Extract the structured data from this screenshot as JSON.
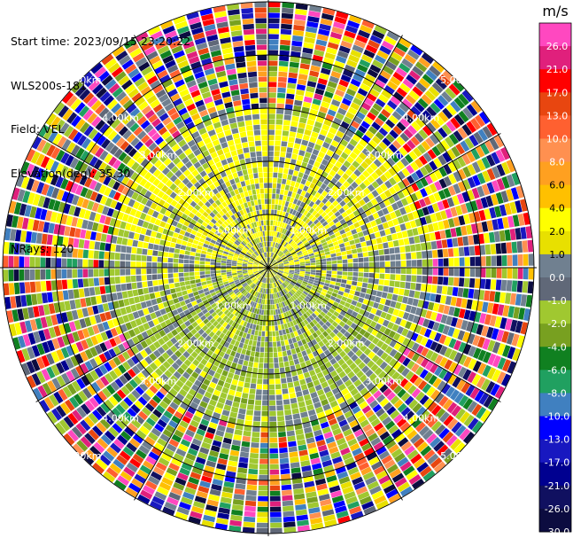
{
  "header": {
    "start_time": "Start time: 2023/09/15 23:20:22",
    "instrument": "WLS200s-181",
    "field": "Field: VEL",
    "elevation": "Elevation(deg): 35.30",
    "nrays": "NRays: 120"
  },
  "chart_data": {
    "type": "ppi",
    "field": "VEL",
    "units": "m/s",
    "nrays": 120,
    "elevation_deg": 35.3,
    "range_rings_km": [
      1,
      2,
      3,
      4,
      5
    ],
    "range_labels": [
      "1.00km",
      "2.00km",
      "3.00km",
      "4.00km",
      "5.00km"
    ],
    "azimuth_spokes_deg": [
      0,
      30,
      60,
      90,
      120,
      150,
      180,
      210,
      240,
      270,
      300,
      330
    ],
    "max_range_km": 5.05,
    "colorbar": {
      "label": "m/s",
      "ticks": [
        "26.0",
        "21.0",
        "17.0",
        "13.0",
        "10.0",
        "8.0",
        "6.0",
        "4.0",
        "2.0",
        "1.0",
        "0.0",
        "-1.0",
        "-2.0",
        "-4.0",
        "-6.0",
        "-8.0",
        "-10.0",
        "-13.0",
        "-17.0",
        "-21.0",
        "-26.0",
        "-30.0"
      ],
      "levels": [
        30,
        26,
        21,
        17,
        13,
        10,
        8,
        6,
        4,
        2,
        1,
        0,
        -1,
        -2,
        -4,
        -6,
        -8,
        -10,
        -13,
        -17,
        -21,
        -26,
        -30
      ],
      "colors": [
        "#ff48c0",
        "#e0207c",
        "#ff0000",
        "#e84610",
        "#ff6030",
        "#ff9050",
        "#ffa020",
        "#ffc000",
        "#ffff00",
        "#e8e000",
        "#708090",
        "#606878",
        "#a0c830",
        "#78a020",
        "#108020",
        "#20a060",
        "#4080c0",
        "#0000ff",
        "#1818c0",
        "#000090",
        "#101060",
        "#0c0c40"
      ],
      "dark_text_indices": [
        7,
        8,
        9
      ]
    },
    "pattern": {
      "inner_range_km": 3.0,
      "near_field": "mostly near-zero velocities: grey (0.0), yellow (+2.0) toward the upper-left and upper-right sectors, olive green (-1.0) toward the lower half",
      "far_field": "beyond ~3 km mixed, noise-dominated colors across the full scale"
    }
  }
}
